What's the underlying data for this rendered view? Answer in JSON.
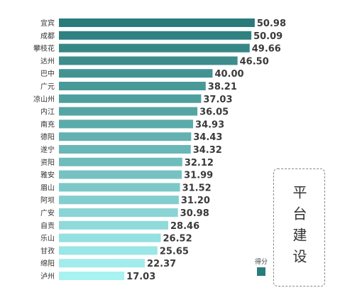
{
  "chart_data": {
    "type": "bar",
    "orientation": "horizontal",
    "categories": [
      "宜宾",
      "成都",
      "攀枝花",
      "达州",
      "巴中",
      "广元",
      "凉山州",
      "内江",
      "南充",
      "德阳",
      "遂宁",
      "资阳",
      "雅安",
      "眉山",
      "阿坝",
      "广安",
      "自贡",
      "乐山",
      "甘孜",
      "绵阳",
      "泸州"
    ],
    "series": [
      {
        "name": "得分",
        "values": [
          50.98,
          50.09,
          49.66,
          46.5,
          40.0,
          38.21,
          37.03,
          36.05,
          34.93,
          34.43,
          34.32,
          32.12,
          31.99,
          31.52,
          31.2,
          30.98,
          28.46,
          26.52,
          25.65,
          22.37,
          17.03
        ]
      }
    ],
    "value_labels": [
      "50.98",
      "50.09",
      "49.66",
      "46.50",
      "40.00",
      "38.21",
      "37.03",
      "36.05",
      "34.93",
      "34.43",
      "34.32",
      "32.12",
      "31.99",
      "31.52",
      "31.20",
      "30.98",
      "28.46",
      "26.52",
      "25.65",
      "22.37",
      "17.03"
    ],
    "title": "",
    "xlabel": "",
    "ylabel": "",
    "xlim": [
      0,
      51
    ],
    "grid": false,
    "legend": "bottom-right",
    "colors": {
      "high": "#2a7b7b",
      "low": "#a8f2f2",
      "legend": "#2a7b7b"
    }
  },
  "side_title": "平台建设"
}
